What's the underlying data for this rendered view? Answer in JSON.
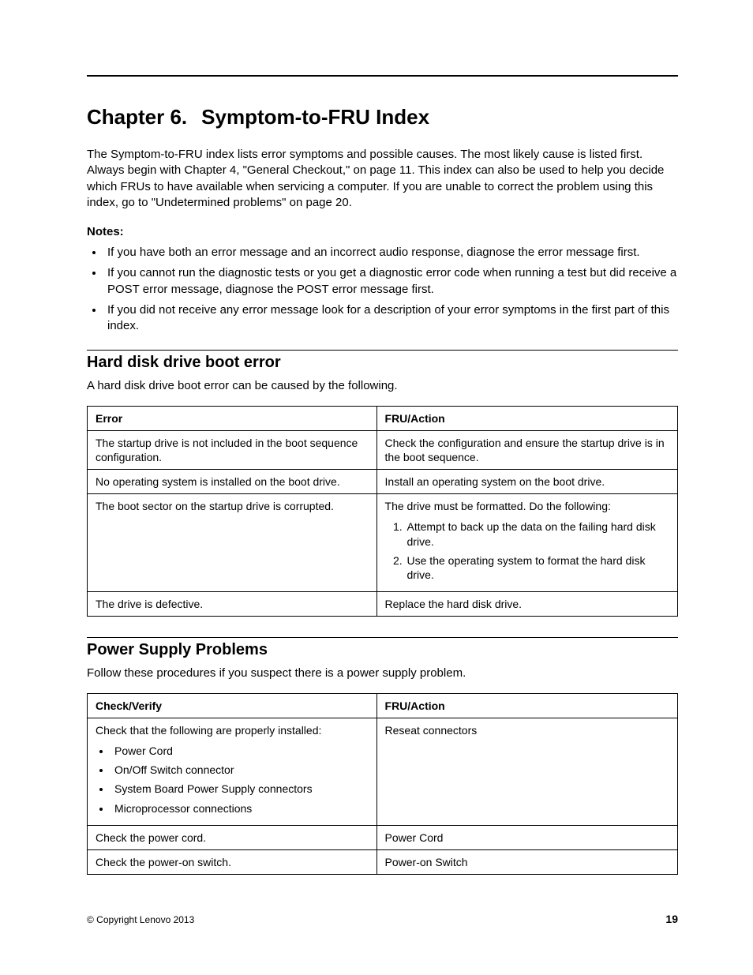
{
  "chapter": {
    "number": "Chapter 6.",
    "title": "Symptom-to-FRU Index",
    "intro": "The Symptom-to-FRU index lists error symptoms and possible causes. The most likely cause is listed first. Always begin with Chapter 4, \"General Checkout,\" on page 11. This index can also be used to help you decide which FRUs to have available when servicing a computer. If you are unable to correct the problem using this index, go to \"Undetermined problems\" on page 20.",
    "notes_label": "Notes:",
    "notes": [
      "If you have both an error message and an incorrect audio response, diagnose the error message first.",
      "If you cannot run the diagnostic tests or you get a diagnostic error code when running a test but did receive a POST error message, diagnose the POST error message first.",
      "If you did not receive any error message look for a description of your error symptoms in the first part of this index."
    ]
  },
  "section_hdd": {
    "title": "Hard disk drive boot error",
    "intro": "A hard disk drive boot error can be caused by the following.",
    "headers": {
      "left": "Error",
      "right": "FRU/Action"
    },
    "rows": {
      "r1": {
        "left": "The startup drive is not included in the boot sequence configuration.",
        "right": "Check the configuration and ensure the startup drive is in the boot sequence."
      },
      "r2": {
        "left": "No operating system is installed on the boot drive.",
        "right": "Install an operating system on the boot drive."
      },
      "r3": {
        "left": "The boot sector on the startup drive is corrupted.",
        "right_intro": "The drive must be formatted. Do the following:",
        "right_steps": [
          "Attempt to back up the data on the failing hard disk drive.",
          "Use the operating system to format the hard disk drive."
        ]
      },
      "r4": {
        "left": "The drive is defective.",
        "right": "Replace the hard disk drive."
      }
    }
  },
  "section_psu": {
    "title": "Power Supply Problems",
    "intro": "Follow these procedures if you suspect there is a power supply problem.",
    "headers": {
      "left": "Check/Verify",
      "right": "FRU/Action"
    },
    "rows": {
      "r1": {
        "left_intro": "Check that the following are properly installed:",
        "left_items": [
          "Power Cord",
          "On/Off Switch connector",
          "System Board Power Supply connectors",
          "Microprocessor connections"
        ],
        "right": "Reseat connectors"
      },
      "r2": {
        "left": "Check the power cord.",
        "right": "Power Cord"
      },
      "r3": {
        "left": "Check the power-on switch.",
        "right": "Power-on Switch"
      }
    }
  },
  "footer": {
    "copyright": "© Copyright Lenovo 2013",
    "page_number": "19"
  }
}
